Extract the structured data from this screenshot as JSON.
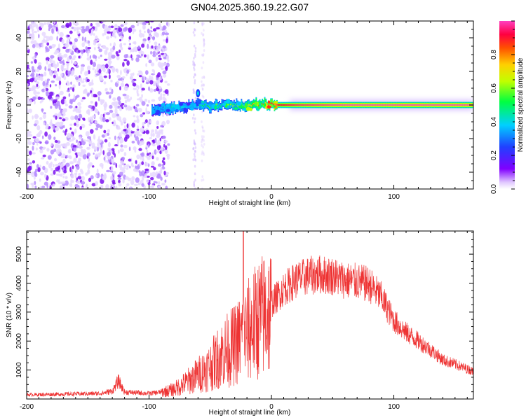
{
  "chart_data": [
    {
      "type": "heatmap",
      "title": "GN04.2025.360.19.22.G07",
      "xlabel": "Height of straight line (km)",
      "ylabel": "Frequency (Hz)",
      "xlim": [
        -200,
        165
      ],
      "ylim": [
        -50,
        50
      ],
      "xticks": [
        -200,
        -100,
        0,
        100
      ],
      "xtick_labels": [
        "-200",
        "-100",
        "0",
        "100"
      ],
      "yticks": [
        -40,
        -20,
        0,
        20,
        40
      ],
      "ytick_labels": [
        "-40",
        "-20",
        "0",
        "20",
        "40"
      ],
      "colorbar": {
        "label": "Normalized spectral amplitude",
        "range": [
          0,
          1
        ],
        "ticks": [
          0.0,
          0.2,
          0.4,
          0.6,
          0.8
        ],
        "tick_labels": [
          "0.0",
          "0.2",
          "0.4",
          "0.6",
          "0.8"
        ]
      },
      "ridge": {
        "description_points_x": [
          -100,
          -90,
          -80,
          -70,
          -60,
          -50,
          -40,
          -30,
          -20,
          -10,
          0,
          20,
          60,
          100,
          165
        ],
        "frequency": [
          -3,
          -2.5,
          -1.5,
          -1,
          1,
          -1,
          0,
          -0.5,
          -0.5,
          0.5,
          0,
          0,
          0,
          0,
          0
        ],
        "amplitude": [
          0.3,
          0.35,
          0.4,
          0.4,
          0.45,
          0.5,
          0.55,
          0.6,
          0.7,
          0.8,
          0.9,
          0.95,
          1.0,
          1.0,
          1.0
        ]
      },
      "noise_region_x": [
        -200,
        -88
      ]
    },
    {
      "type": "line",
      "xlabel": "Height of straight line (km)",
      "ylabel": "SNR (10 * v/v)",
      "xlim": [
        -200,
        165
      ],
      "ylim": [
        0,
        5800
      ],
      "xticks": [
        -200,
        -100,
        0,
        100
      ],
      "xtick_labels": [
        "-200",
        "-100",
        "0",
        "100"
      ],
      "yticks": [
        1000,
        2000,
        3000,
        4000,
        5000
      ],
      "ytick_labels": [
        "1000",
        "2000",
        "3000",
        "4000",
        "5000"
      ],
      "color": "#ee3333",
      "envelope": {
        "x": [
          -200,
          -140,
          -130,
          -125,
          -120,
          -100,
          -90,
          -80,
          -70,
          -60,
          -50,
          -40,
          -30,
          -20,
          -10,
          0,
          10,
          20,
          30,
          40,
          50,
          60,
          70,
          80,
          90,
          100,
          110,
          120,
          130,
          140,
          150,
          165
        ],
        "y": [
          150,
          200,
          280,
          650,
          250,
          200,
          250,
          350,
          600,
          900,
          1200,
          1700,
          2000,
          2500,
          3000,
          3300,
          3800,
          4100,
          4250,
          4300,
          4250,
          4100,
          4050,
          3950,
          3500,
          2700,
          2300,
          2000,
          1700,
          1350,
          1200,
          950
        ]
      },
      "spike": {
        "x": -23,
        "y": 5800
      }
    }
  ]
}
